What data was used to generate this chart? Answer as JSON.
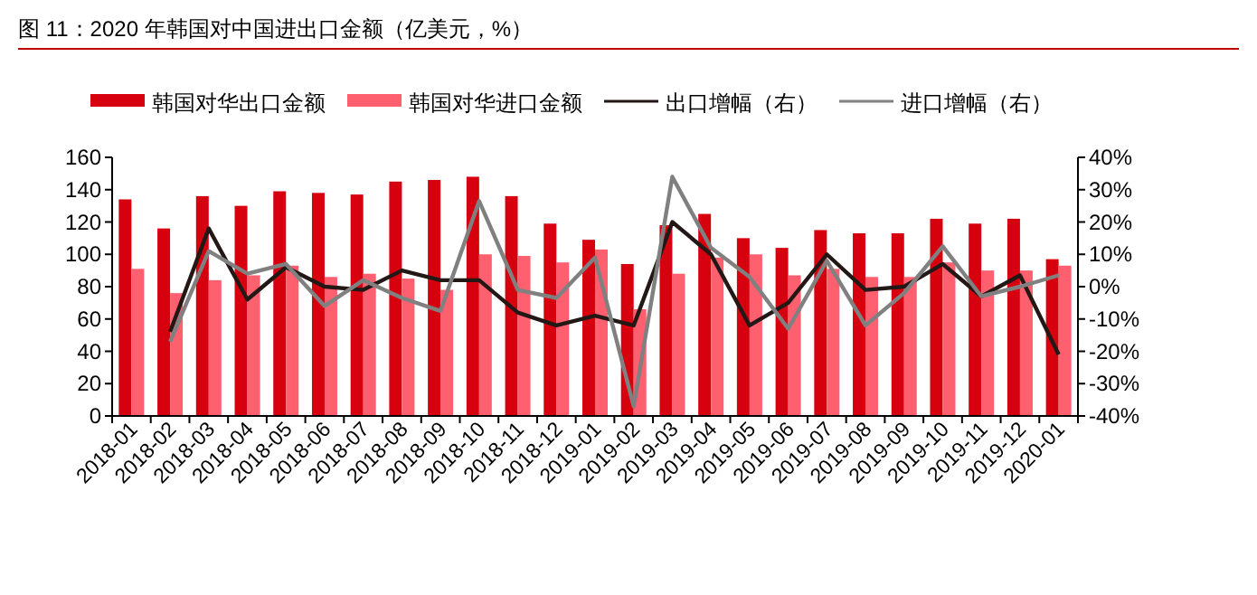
{
  "chart_data": {
    "type": "bar",
    "title": "图 11：2020 年韩国对中国进出口金额（亿美元，%）",
    "categories": [
      "2018-01",
      "2018-02",
      "2018-03",
      "2018-04",
      "2018-05",
      "2018-06",
      "2018-07",
      "2018-08",
      "2018-09",
      "2018-10",
      "2018-11",
      "2018-12",
      "2019-01",
      "2019-02",
      "2019-03",
      "2019-04",
      "2019-05",
      "2019-06",
      "2019-07",
      "2019-08",
      "2019-09",
      "2019-10",
      "2019-11",
      "2019-12",
      "2020-01"
    ],
    "series": [
      {
        "name": "韩国对华出口金额",
        "color": "#d7000f",
        "values": [
          134,
          116,
          136,
          130,
          139,
          138,
          137,
          145,
          146,
          148,
          136,
          119,
          109,
          94,
          118,
          125,
          110,
          104,
          115,
          113,
          113,
          122,
          119,
          122,
          97
        ]
      },
      {
        "name": "韩国对华进口金额",
        "color": "#ff6070",
        "values": [
          91,
          76,
          84,
          87,
          93,
          86,
          88,
          85,
          78,
          100,
          99,
          95,
          103,
          66,
          88,
          98,
          100,
          87,
          91,
          86,
          86,
          95,
          90,
          90,
          93
        ]
      },
      {
        "name": "出口增幅（右）",
        "type": "line",
        "axis": "y2",
        "color": "#231815",
        "values": [
          null,
          -14,
          18,
          -4,
          6,
          0,
          -1,
          5,
          2,
          2,
          -8,
          -12,
          -9,
          -12,
          20,
          10,
          -12,
          -5,
          10,
          -1,
          0,
          7,
          -3,
          3.5,
          -21
        ]
      },
      {
        "name": "进口增幅（右）",
        "type": "line",
        "axis": "y2",
        "color": "#808080",
        "values": [
          null,
          -17,
          11,
          4,
          7,
          -6,
          2,
          -3.5,
          -7.5,
          26.5,
          -1,
          -3.5,
          9,
          -37,
          34,
          12,
          3,
          -13,
          8,
          -12,
          -2,
          12.5,
          -3,
          0,
          3.5
        ]
      }
    ],
    "ylim": [
      0,
      160
    ],
    "yticks": [
      0,
      20,
      40,
      60,
      80,
      100,
      120,
      140,
      160
    ],
    "y2lim": [
      -40,
      40
    ],
    "y2ticks": [
      {
        "value": -40,
        "label": "-40%"
      },
      {
        "value": -30,
        "label": "-30%"
      },
      {
        "value": -20,
        "label": "-20%"
      },
      {
        "value": -10,
        "label": "-10%"
      },
      {
        "value": 0,
        "label": "0%"
      },
      {
        "value": 10,
        "label": "10%"
      },
      {
        "value": 20,
        "label": "20%"
      },
      {
        "value": 30,
        "label": "30%"
      },
      {
        "value": 40,
        "label": "40%"
      }
    ],
    "legend": "top",
    "grid": false
  }
}
